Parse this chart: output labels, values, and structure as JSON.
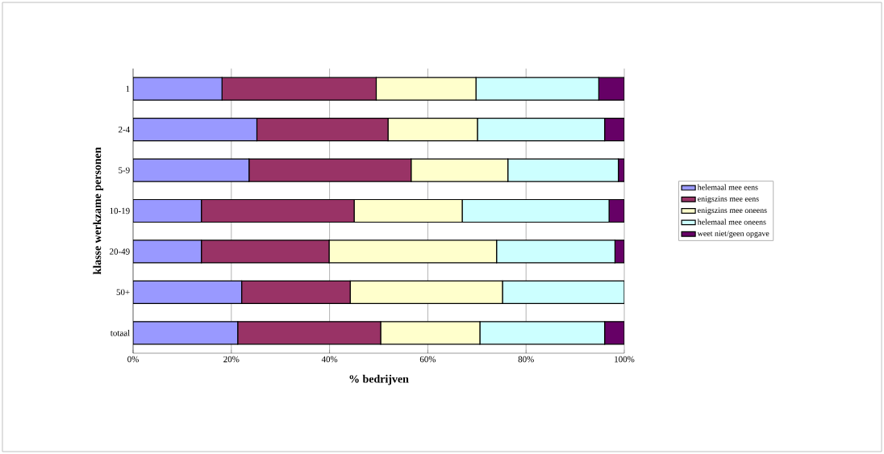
{
  "chart_data": {
    "type": "bar",
    "orientation": "horizontal",
    "stacked": true,
    "xlabel": "% bedrijven",
    "ylabel": "klasse werkzame personen",
    "categories": [
      "1",
      "2-4",
      "5-9",
      "10-19",
      "20-49",
      "50+",
      "totaal"
    ],
    "series": [
      {
        "name": "helemaal mee eens",
        "color": "#9999ff",
        "values": [
          18.1,
          25.2,
          23.6,
          13.9,
          13.9,
          22.1,
          21.3
        ]
      },
      {
        "name": "enigszins mee eens",
        "color": "#993366",
        "values": [
          31.4,
          26.7,
          33.0,
          31.1,
          26.0,
          22.1,
          29.1
        ]
      },
      {
        "name": "enigszins mee oneens",
        "color": "#ffffcc",
        "values": [
          20.3,
          18.2,
          19.7,
          22.0,
          34.1,
          31.0,
          20.2
        ]
      },
      {
        "name": "helemaal mee oneens",
        "color": "#ccffff",
        "values": [
          25.0,
          25.9,
          22.5,
          29.9,
          24.1,
          24.8,
          25.4
        ]
      },
      {
        "name": "weet niet/geen opgave",
        "color": "#660066",
        "values": [
          5.2,
          4.0,
          1.2,
          3.1,
          1.9,
          0,
          4.0
        ]
      }
    ],
    "xlim": [
      0,
      100
    ],
    "xticks": [
      {
        "value": 0,
        "label": "0%"
      },
      {
        "value": 20,
        "label": "20%"
      },
      {
        "value": 40,
        "label": "40%"
      },
      {
        "value": 60,
        "label": "60%"
      },
      {
        "value": 80,
        "label": "80%"
      },
      {
        "value": 100,
        "label": "100%"
      }
    ],
    "grid": "x",
    "legend": "right"
  }
}
